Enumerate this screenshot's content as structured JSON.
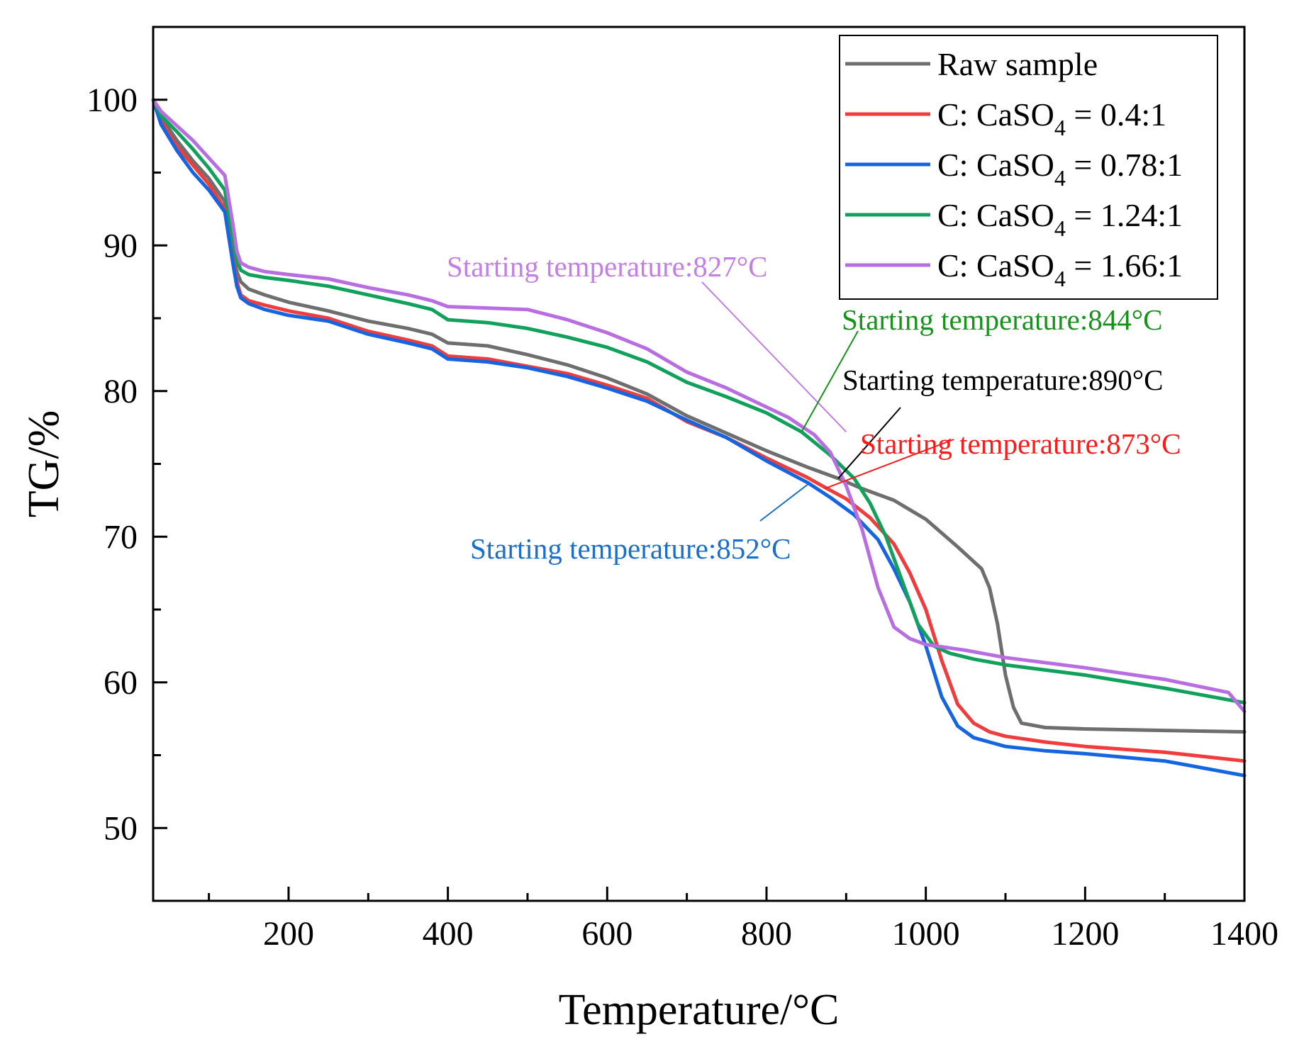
{
  "chart_data": {
    "type": "line",
    "title": "",
    "xlabel": "Temperature/°C",
    "ylabel": "TG/%",
    "xlim": [
      30,
      1400
    ],
    "ylim": [
      45,
      105
    ],
    "xticks": [
      200,
      400,
      600,
      800,
      1000,
      1200,
      1400
    ],
    "yticks": [
      50,
      60,
      70,
      80,
      90,
      100
    ],
    "grid": false,
    "legend_position": "top-right",
    "series": [
      {
        "name": "Raw sample",
        "legend": {
          "prefix": "Raw sample",
          "sub": "",
          "suffix": ""
        },
        "color": "#6e6e6e",
        "x": [
          30,
          40,
          60,
          80,
          100,
          120,
          130,
          135,
          140,
          150,
          170,
          200,
          250,
          300,
          350,
          380,
          400,
          450,
          500,
          550,
          600,
          650,
          700,
          750,
          800,
          850,
          890,
          920,
          960,
          1000,
          1040,
          1070,
          1080,
          1090,
          1100,
          1110,
          1120,
          1150,
          1200,
          1300,
          1400
        ],
        "y": [
          100,
          98.8,
          97.2,
          95.8,
          94.6,
          93.0,
          89.5,
          88.2,
          87.5,
          87.0,
          86.6,
          86.1,
          85.5,
          84.8,
          84.3,
          83.9,
          83.3,
          83.1,
          82.5,
          81.8,
          80.9,
          79.8,
          78.3,
          77.1,
          75.9,
          74.8,
          74.0,
          73.3,
          72.5,
          71.2,
          69.3,
          67.8,
          66.5,
          64.0,
          60.5,
          58.3,
          57.2,
          56.9,
          56.8,
          56.7,
          56.6
        ]
      },
      {
        "name": "C: CaSO4 = 0.4:1",
        "legend": {
          "prefix": "C: CaSO",
          "sub": "4",
          "suffix": " = 0.4:1"
        },
        "color": "#f03c3c",
        "x": [
          30,
          40,
          60,
          80,
          100,
          120,
          130,
          135,
          140,
          150,
          170,
          200,
          250,
          300,
          350,
          380,
          400,
          450,
          500,
          550,
          600,
          650,
          700,
          750,
          800,
          850,
          873,
          900,
          930,
          960,
          980,
          1000,
          1020,
          1040,
          1060,
          1080,
          1100,
          1150,
          1200,
          1300,
          1400
        ],
        "y": [
          100,
          98.5,
          96.8,
          95.5,
          94.2,
          92.5,
          89.0,
          87.5,
          86.6,
          86.2,
          85.9,
          85.5,
          85.0,
          84.1,
          83.5,
          83.1,
          82.4,
          82.2,
          81.7,
          81.2,
          80.4,
          79.5,
          77.9,
          76.8,
          75.4,
          74.1,
          73.4,
          72.6,
          71.3,
          69.5,
          67.5,
          65.0,
          61.5,
          58.5,
          57.2,
          56.6,
          56.3,
          55.9,
          55.6,
          55.2,
          54.6
        ]
      },
      {
        "name": "C: CaSO4 = 0.78:1",
        "legend": {
          "prefix": "C: CaSO",
          "sub": "4",
          "suffix": " = 0.78:1"
        },
        "color": "#1565e0",
        "x": [
          30,
          40,
          60,
          80,
          100,
          120,
          130,
          135,
          140,
          150,
          170,
          200,
          250,
          300,
          350,
          380,
          400,
          450,
          500,
          550,
          600,
          650,
          700,
          750,
          800,
          852,
          880,
          910,
          940,
          960,
          980,
          1000,
          1020,
          1040,
          1060,
          1080,
          1100,
          1150,
          1200,
          1300,
          1400
        ],
        "y": [
          100,
          98.3,
          96.5,
          95.0,
          93.8,
          92.3,
          88.8,
          87.2,
          86.4,
          86.0,
          85.6,
          85.2,
          84.8,
          83.9,
          83.3,
          82.9,
          82.2,
          82.0,
          81.6,
          81.0,
          80.2,
          79.3,
          78.0,
          76.8,
          75.2,
          73.7,
          72.7,
          71.5,
          69.8,
          67.8,
          65.5,
          62.5,
          59.0,
          57.0,
          56.2,
          55.9,
          55.6,
          55.3,
          55.1,
          54.6,
          53.6
        ]
      },
      {
        "name": "C: CaSO4 = 1.24:1",
        "legend": {
          "prefix": "C: CaSO",
          "sub": "4",
          "suffix": " = 1.24:1"
        },
        "color": "#12a15c",
        "x": [
          30,
          40,
          60,
          80,
          100,
          120,
          130,
          135,
          140,
          150,
          170,
          200,
          250,
          300,
          350,
          380,
          400,
          450,
          500,
          550,
          600,
          650,
          700,
          750,
          800,
          844,
          880,
          910,
          930,
          950,
          970,
          990,
          1010,
          1030,
          1060,
          1100,
          1200,
          1300,
          1400
        ],
        "y": [
          100,
          98.9,
          97.8,
          96.6,
          95.3,
          93.8,
          90.5,
          89.0,
          88.3,
          88.0,
          87.8,
          87.6,
          87.2,
          86.6,
          86.0,
          85.6,
          84.9,
          84.7,
          84.3,
          83.7,
          83.0,
          82.0,
          80.6,
          79.6,
          78.5,
          77.2,
          75.6,
          74.0,
          72.3,
          70.0,
          67.0,
          64.0,
          62.5,
          62.0,
          61.6,
          61.2,
          60.5,
          59.6,
          58.6
        ]
      },
      {
        "name": "C: CaSO4 = 1.66:1",
        "legend": {
          "prefix": "C: CaSO",
          "sub": "4",
          "suffix": " = 1.66:1"
        },
        "color": "#b86ee0",
        "x": [
          30,
          40,
          60,
          80,
          100,
          120,
          130,
          135,
          140,
          150,
          170,
          200,
          250,
          300,
          350,
          380,
          400,
          450,
          500,
          550,
          600,
          650,
          700,
          750,
          800,
          827,
          860,
          880,
          900,
          920,
          940,
          960,
          980,
          1000,
          1050,
          1100,
          1200,
          1300,
          1380,
          1400
        ],
        "y": [
          100,
          99.2,
          98.2,
          97.2,
          96.0,
          94.8,
          91.5,
          89.6,
          88.8,
          88.5,
          88.2,
          88.0,
          87.7,
          87.1,
          86.6,
          86.2,
          85.8,
          85.7,
          85.6,
          84.9,
          84.0,
          82.9,
          81.3,
          80.2,
          78.9,
          78.2,
          77.0,
          75.8,
          73.5,
          70.5,
          66.5,
          63.8,
          63.0,
          62.6,
          62.2,
          61.7,
          61.0,
          60.2,
          59.3,
          58.0
        ]
      }
    ],
    "annotations": [
      {
        "text": "Starting temperature:827°C",
        "color": "#c57ee8",
        "target": [
          900,
          77.2
        ]
      },
      {
        "text": "Starting temperature:844°C",
        "color": "#16931a",
        "target": [
          844,
          77.2
        ]
      },
      {
        "text": "Starting temperature:890°C",
        "color": "#000000",
        "target": [
          890,
          74.0
        ]
      },
      {
        "text": "Starting temperature:873°C",
        "color": "#ff1a1a",
        "target": [
          873,
          73.3
        ]
      },
      {
        "text": "Starting temperature:852°C",
        "color": "#1a6fcc",
        "target": [
          852,
          73.6
        ]
      }
    ]
  }
}
